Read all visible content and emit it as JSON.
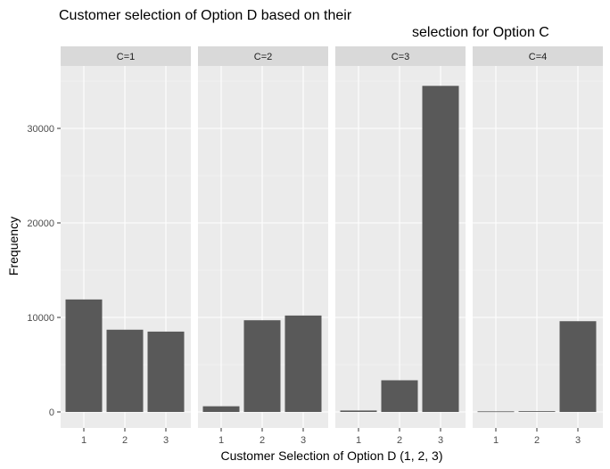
{
  "chart_data": {
    "type": "bar",
    "title_lines": [
      "Customer selection of Option D based on their",
      "selection for Option C"
    ],
    "xlabel": "Customer Selection of Option D (1, 2, 3)",
    "ylabel": "Frequency",
    "categories": [
      "1",
      "2",
      "3"
    ],
    "ylim": [
      0,
      36000
    ],
    "y_ticks": [
      0,
      10000,
      20000,
      30000
    ],
    "grid": true,
    "legend": "none",
    "facets": [
      {
        "label": "C=1",
        "values": [
          11900,
          8700,
          8500
        ]
      },
      {
        "label": "C=2",
        "values": [
          600,
          9700,
          10200
        ]
      },
      {
        "label": "C=3",
        "values": [
          150,
          3350,
          34500
        ]
      },
      {
        "label": "C=4",
        "values": [
          60,
          80,
          9600
        ]
      }
    ]
  },
  "colors": {
    "bar": "#595959",
    "panel_bg": "#ebebeb",
    "strip_bg": "#d9d9d9",
    "grid_major": "#ffffff",
    "tick_text": "#4d4d4d"
  }
}
